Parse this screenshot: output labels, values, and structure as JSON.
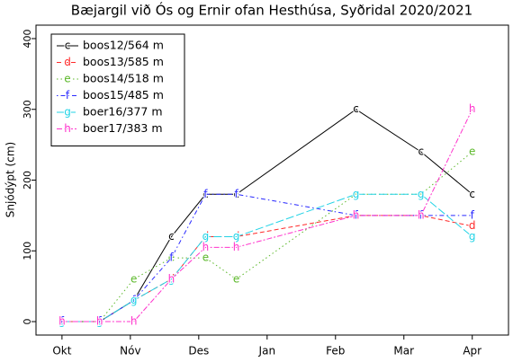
{
  "chart_data": {
    "type": "line",
    "title": "Bæjargil við Ós og Ernir ofan Hesthúsa, Syðridal 2020/2021",
    "y_label": "Snjódýpt (cm)",
    "x": [
      0,
      0.55,
      1.05,
      1.6,
      2.1,
      2.55,
      4.3,
      5.25,
      6.0
    ],
    "xlim": [
      -0.38,
      6.53
    ],
    "xticks": [
      {
        "value": 0,
        "label": "Okt"
      },
      {
        "value": 1,
        "label": "Nóv"
      },
      {
        "value": 2,
        "label": "Des"
      },
      {
        "value": 3,
        "label": "Jan"
      },
      {
        "value": 4,
        "label": "Feb"
      },
      {
        "value": 5,
        "label": "Mar"
      },
      {
        "value": 6,
        "label": "Apr"
      }
    ],
    "ylim": [
      -19,
      419
    ],
    "yticks": [
      0,
      100,
      200,
      300,
      400
    ],
    "legend_position": "top-left",
    "series": [
      {
        "name": "boos12/564 m",
        "marker": "c",
        "color": "#000000",
        "linestyle": "solid",
        "values": [
          0,
          0,
          30,
          120,
          180,
          180,
          300,
          240,
          180
        ]
      },
      {
        "name": "boos13/585 m",
        "marker": "d",
        "color": "#ff2a2a",
        "linestyle": "dashed",
        "values": [
          0,
          0,
          30,
          60,
          120,
          120,
          150,
          150,
          135
        ]
      },
      {
        "name": "boos14/518 m",
        "marker": "e",
        "color": "#5cb82a",
        "linestyle": "dotted",
        "values": [
          0,
          0,
          60,
          90,
          90,
          60,
          180,
          180,
          240
        ]
      },
      {
        "name": "boos15/485 m",
        "marker": "f",
        "color": "#2a2aff",
        "linestyle": "dotdash",
        "values": [
          0,
          0,
          30,
          90,
          180,
          180,
          150,
          150,
          150
        ]
      },
      {
        "name": "boer16/377 m",
        "marker": "g",
        "color": "#22d3e6",
        "linestyle": "longdash",
        "values": [
          0,
          0,
          30,
          60,
          120,
          120,
          180,
          180,
          120
        ]
      },
      {
        "name": "boer17/383 m",
        "marker": "h",
        "color": "#ff33cc",
        "linestyle": "twodash",
        "values": [
          0,
          0,
          0,
          60,
          105,
          105,
          150,
          150,
          300
        ]
      }
    ]
  }
}
